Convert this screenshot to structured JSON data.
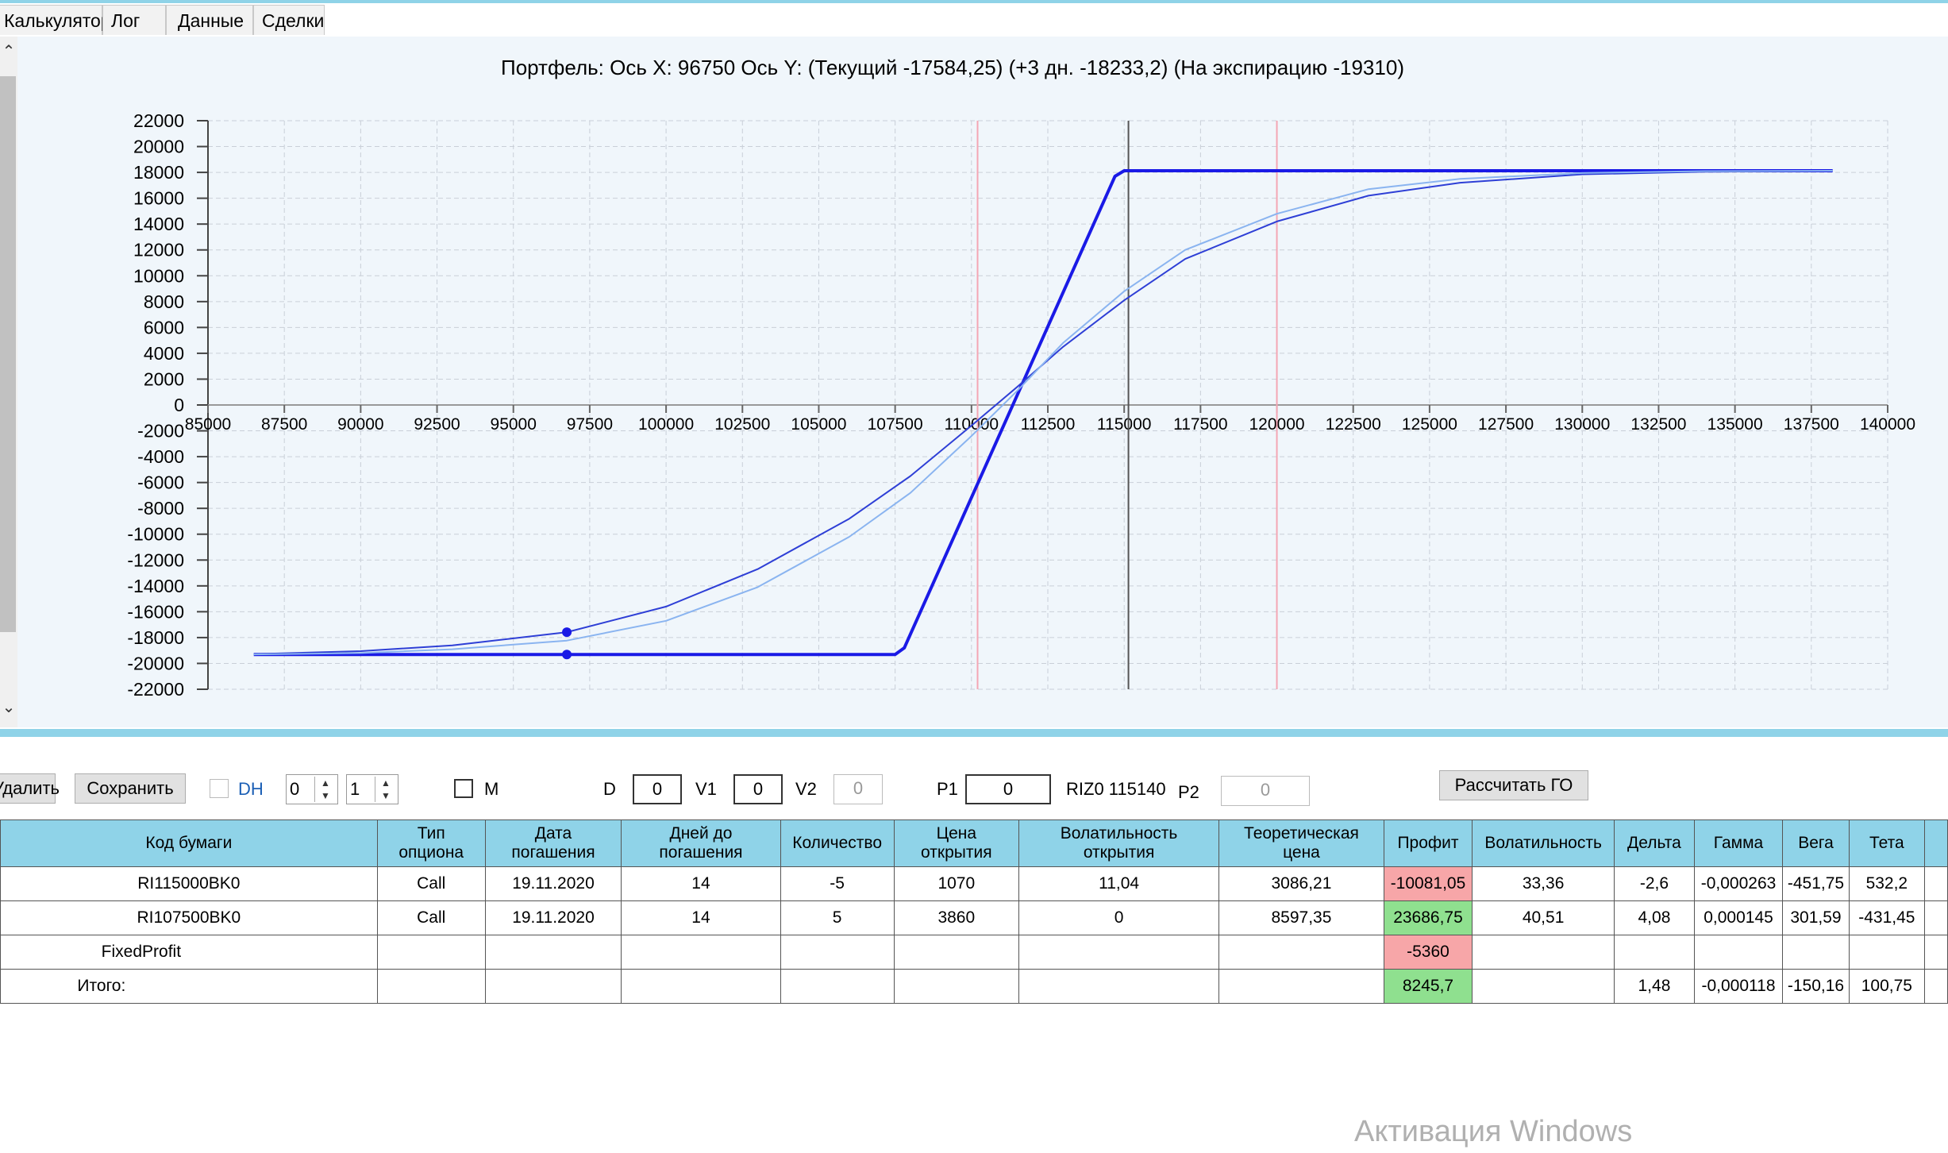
{
  "tabs": [
    {
      "label": "Калькулятор"
    },
    {
      "label": "Лог"
    },
    {
      "label": "Данные"
    },
    {
      "label": "Сделки"
    }
  ],
  "chart_title": "Портфель: Ось X: 96750 Ось Y:  (Текущий -17584,25)  (+3 дн. -18233,2)  (На экспирацию -19310)",
  "chart_data": {
    "type": "line",
    "xlim": [
      85000,
      140000
    ],
    "ylim": [
      -22000,
      22000
    ],
    "x_ticks": [
      "85000",
      "87500",
      "90000",
      "92500",
      "95000",
      "97500",
      "100000",
      "102500",
      "105000",
      "107500",
      "110000",
      "112500",
      "115000",
      "117500",
      "120000",
      "122500",
      "125000",
      "127500",
      "130000",
      "132500",
      "135000",
      "137500",
      "140000"
    ],
    "y_ticks": [
      "22000",
      "20000",
      "18000",
      "16000",
      "14000",
      "12000",
      "10000",
      "8000",
      "6000",
      "4000",
      "2000",
      "0",
      "-2000",
      "-4000",
      "-6000",
      "-8000",
      "-10000",
      "-12000",
      "-14000",
      "-16000",
      "-18000",
      "-20000",
      "-22000"
    ],
    "grid": true,
    "vertical_lines": [
      {
        "x": 110200,
        "color": "#f4a6b4"
      },
      {
        "x": 115140,
        "color": "#555555"
      },
      {
        "x": 120000,
        "color": "#f4a6b4"
      }
    ],
    "series": [
      {
        "color": "#1a1ae6",
        "width": 4,
        "x": [
          86500,
          107500,
          107800,
          114700,
          115000,
          138200
        ],
        "y": [
          -19310,
          -19310,
          -18800,
          17700,
          18130,
          18130
        ]
      },
      {
        "color": "#2e3fd6",
        "width": 2,
        "x": [
          86500,
          90000,
          93000,
          96750,
          100000,
          103000,
          106000,
          108000,
          110000,
          111500,
          113000,
          115000,
          117000,
          120000,
          123000,
          126000,
          130000,
          134000,
          138200
        ],
        "y": [
          -19280,
          -19050,
          -18600,
          -17584,
          -15600,
          -12700,
          -8800,
          -5500,
          -1600,
          1400,
          4500,
          8100,
          11300,
          14200,
          16200,
          17200,
          17850,
          18050,
          18130
        ]
      },
      {
        "color": "#8ab4f0",
        "width": 2,
        "x": [
          86500,
          90000,
          93000,
          96750,
          100000,
          103000,
          106000,
          108000,
          110000,
          111500,
          113000,
          115000,
          117000,
          120000,
          123000,
          126000,
          130000,
          134000,
          138200
        ],
        "y": [
          -19300,
          -19200,
          -18900,
          -18233,
          -16700,
          -14100,
          -10200,
          -6800,
          -2400,
          1100,
          4800,
          8800,
          12000,
          14800,
          16700,
          17500,
          17950,
          18100,
          18130
        ]
      }
    ],
    "markers": [
      {
        "x": 96750,
        "y": -17584
      },
      {
        "x": 96750,
        "y": -19310
      }
    ]
  },
  "toolbar": {
    "delete_label": "Удалить",
    "save_label": "Сохранить",
    "dh_label": "DH",
    "spin1_value": "0",
    "spin2_value": "1",
    "m_label": "M",
    "d_label": "D",
    "d_value": "0",
    "v1_label": "V1",
    "v1_value": "0",
    "v2_label": "V2",
    "v2_value": "0",
    "p1_label": "P1",
    "p1_value": "0",
    "riz_text": "RIZ0 115140",
    "p2_label": "P2",
    "p2_value": "0",
    "calc_label": "Рассчитать ГО"
  },
  "table": {
    "headers": [
      {
        "l1": "Код бумаги",
        "l2": ""
      },
      {
        "l1": "Тип",
        "l2": "опциона"
      },
      {
        "l1": "Дата",
        "l2": "погашения"
      },
      {
        "l1": "Дней до",
        "l2": "погашения"
      },
      {
        "l1": "Количество",
        "l2": ""
      },
      {
        "l1": "Цена",
        "l2": "открытия"
      },
      {
        "l1": "Волатильность",
        "l2": "открытия"
      },
      {
        "l1": "Теоретическая",
        "l2": "цена"
      },
      {
        "l1": "Профит",
        "l2": ""
      },
      {
        "l1": "Волатильность",
        "l2": ""
      },
      {
        "l1": "Дельта",
        "l2": ""
      },
      {
        "l1": "Гамма",
        "l2": ""
      },
      {
        "l1": "Вега",
        "l2": ""
      },
      {
        "l1": "Тета",
        "l2": ""
      }
    ],
    "rows": [
      {
        "cells": [
          "RI115000BK0",
          "Call",
          "19.11.2020",
          "14",
          "-5",
          "1070",
          "11,04",
          "3086,21",
          "-10081,05",
          "33,36",
          "-2,6",
          "-0,000263",
          "-451,75",
          "532,2"
        ],
        "profit": "red"
      },
      {
        "cells": [
          "RI107500BK0",
          "Call",
          "19.11.2020",
          "14",
          "5",
          "3860",
          "0",
          "8597,35",
          "23686,75",
          "40,51",
          "4,08",
          "0,000145",
          "301,59",
          "-431,45"
        ],
        "profit": "green"
      },
      {
        "cells": [
          "FixedProfit",
          "",
          "",
          "",
          "",
          "",
          "",
          "",
          "-5360",
          "",
          "",
          "",
          "",
          ""
        ],
        "profit": "red"
      },
      {
        "cells": [
          "Итого:",
          "",
          "",
          "",
          "",
          "",
          "",
          "",
          "8245,7",
          "",
          "1,48",
          "-0,000118",
          "-150,16",
          "100,75"
        ],
        "profit": "green"
      }
    ]
  },
  "watermark": "Активация Windows"
}
